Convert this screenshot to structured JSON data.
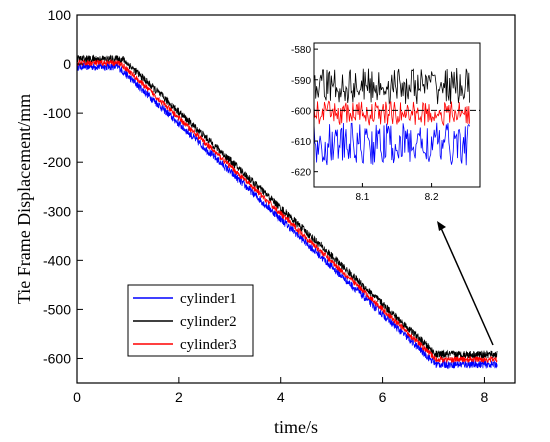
{
  "chart_data": {
    "type": "line",
    "xlabel": "time/s",
    "ylabel": "Tie Frame Displacement/mm",
    "xlim": [
      0,
      8.6
    ],
    "ylim": [
      -650,
      100
    ],
    "xticks": [
      0,
      2,
      4,
      6,
      8
    ],
    "yticks": [
      100,
      0,
      -100,
      -200,
      -300,
      -400,
      -500,
      -600
    ],
    "legend_position": "bottom-left",
    "series": [
      {
        "name": "cylinder1",
        "color": "#0000ff",
        "x": [
          0,
          0.8,
          7.05,
          8.25
        ],
        "y": [
          -5,
          -5,
          -612,
          -612
        ],
        "noise": 8
      },
      {
        "name": "cylinder2",
        "color": "#000000",
        "x": [
          0,
          0.9,
          7.05,
          8.25
        ],
        "y": [
          10,
          10,
          -592,
          -592
        ],
        "noise": 8
      },
      {
        "name": "cylinder3",
        "color": "#ff0000",
        "x": [
          0,
          0.85,
          7.05,
          8.25
        ],
        "y": [
          2,
          2,
          -602,
          -602
        ],
        "noise": 6
      }
    ],
    "inset": {
      "xlim": [
        8.03,
        8.27
      ],
      "ylim": [
        -625,
        -578
      ],
      "xticks": [
        8.1,
        8.2
      ],
      "yticks": [
        -580,
        -590,
        -600,
        -610,
        -620
      ],
      "reference_line": -600,
      "series": [
        {
          "name": "cylinder1",
          "color": "#0000ff",
          "mean": -611,
          "amp": 7
        },
        {
          "name": "cylinder2",
          "color": "#000000",
          "mean": -592,
          "amp": 6
        },
        {
          "name": "cylinder3",
          "color": "#ff0000",
          "mean": -601,
          "amp": 4
        }
      ]
    }
  }
}
